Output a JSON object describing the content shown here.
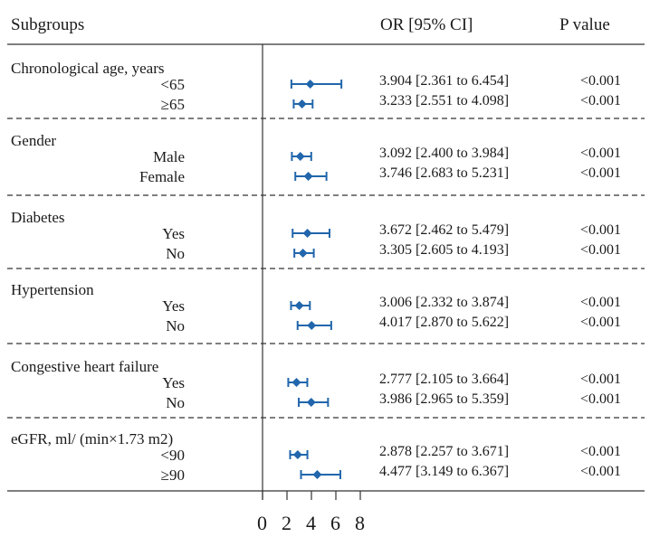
{
  "headers": {
    "subgroups": "Subgroups",
    "or": "OR [95% CI]",
    "p": "P value"
  },
  "chart_data": {
    "type": "forest",
    "xlim": [
      0,
      8
    ],
    "x_ticks": [
      "0",
      "2",
      "4",
      "6",
      "8"
    ],
    "marker_color": "#2166ac",
    "groups": [
      {
        "name": "Chronological age, years",
        "rows": [
          {
            "label": "<65",
            "or": 3.904,
            "lo": 2.361,
            "hi": 6.454,
            "ci_text": "3.904 [2.361 to 6.454]",
            "p": "<0.001"
          },
          {
            "label": "≥65",
            "or": 3.233,
            "lo": 2.551,
            "hi": 4.098,
            "ci_text": "3.233 [2.551 to 4.098]",
            "p": "<0.001"
          }
        ]
      },
      {
        "name": "Gender",
        "rows": [
          {
            "label": "Male",
            "or": 3.092,
            "lo": 2.4,
            "hi": 3.984,
            "ci_text": "3.092 [2.400 to 3.984]",
            "p": "<0.001"
          },
          {
            "label": "Female",
            "or": 3.746,
            "lo": 2.683,
            "hi": 5.231,
            "ci_text": "3.746 [2.683 to 5.231]",
            "p": "<0.001"
          }
        ]
      },
      {
        "name": "Diabetes",
        "rows": [
          {
            "label": "Yes",
            "or": 3.672,
            "lo": 2.462,
            "hi": 5.479,
            "ci_text": "3.672 [2.462 to 5.479]",
            "p": "<0.001"
          },
          {
            "label": "No",
            "or": 3.305,
            "lo": 2.605,
            "hi": 4.193,
            "ci_text": "3.305 [2.605 to 4.193]",
            "p": "<0.001"
          }
        ]
      },
      {
        "name": "Hypertension",
        "rows": [
          {
            "label": "Yes",
            "or": 3.006,
            "lo": 2.332,
            "hi": 3.874,
            "ci_text": "3.006 [2.332 to 3.874]",
            "p": "<0.001"
          },
          {
            "label": "No",
            "or": 4.017,
            "lo": 2.87,
            "hi": 5.622,
            "ci_text": "4.017 [2.870 to 5.622]",
            "p": "<0.001"
          }
        ]
      },
      {
        "name": "Congestive heart failure",
        "rows": [
          {
            "label": "Yes",
            "or": 2.777,
            "lo": 2.105,
            "hi": 3.664,
            "ci_text": "2.777 [2.105 to 3.664]",
            "p": "<0.001"
          },
          {
            "label": "No",
            "or": 3.986,
            "lo": 2.965,
            "hi": 5.359,
            "ci_text": "3.986 [2.965 to 5.359]",
            "p": "<0.001"
          }
        ]
      },
      {
        "name": "eGFR, ml/ (min×1.73 m2)",
        "rows": [
          {
            "label": "<90",
            "or": 2.878,
            "lo": 2.257,
            "hi": 3.671,
            "ci_text": "2.878 [2.257 to 3.671]",
            "p": "<0.001"
          },
          {
            "label": "≥90",
            "or": 4.477,
            "lo": 3.149,
            "hi": 6.367,
            "ci_text": "4.477 [3.149 to 6.367]",
            "p": "<0.001"
          }
        ]
      }
    ]
  }
}
